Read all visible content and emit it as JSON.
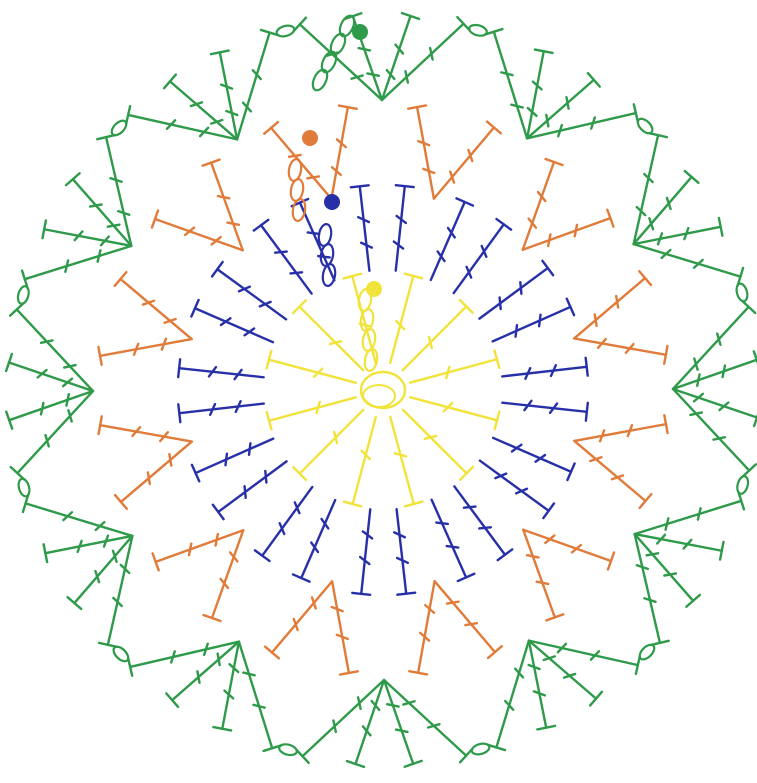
{
  "diagram": {
    "type": "crochet-round-chart",
    "background": "#ffffff",
    "rounds": [
      {
        "name": "round-1",
        "color": "#f2e33a",
        "stitch": "double-crochet",
        "stitch_count": 12,
        "start_marker": "dot"
      },
      {
        "name": "round-2",
        "color": "#2730a8",
        "stitch": "treble-crochet-pair",
        "stitch_count": 24,
        "start_marker": "dot"
      },
      {
        "name": "round-3",
        "color": "#e07b39",
        "stitch": "double-crochet-v",
        "stitch_count": 36,
        "start_marker": "dot"
      },
      {
        "name": "round-4",
        "color": "#2e9a4a",
        "stitch": "double-crochet-fan-with-chain",
        "stitch_count": 48,
        "start_marker": "dot"
      }
    ],
    "center_ring": {
      "color": "#f2e33a",
      "symbol": "magic-ring"
    }
  }
}
